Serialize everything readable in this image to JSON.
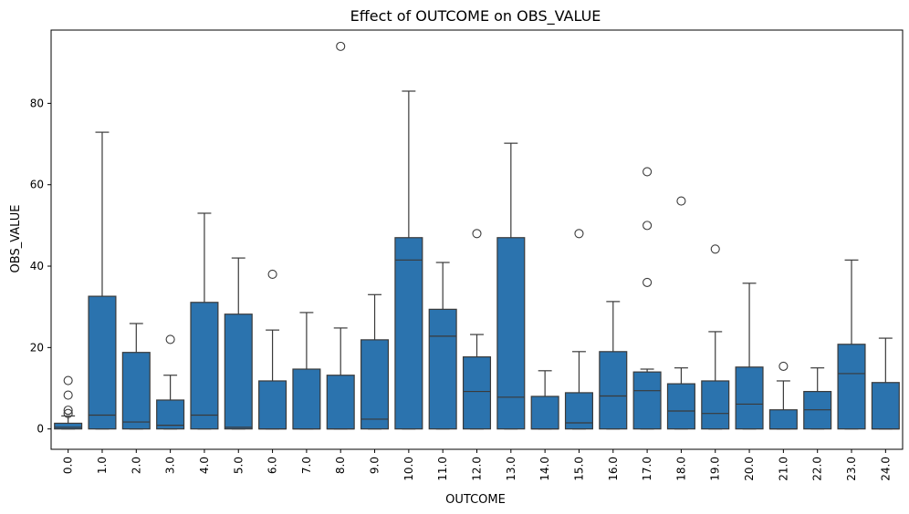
{
  "chart_data": {
    "type": "box",
    "title": "Effect of OUTCOME on OBS_VALUE",
    "xlabel": "OUTCOME",
    "ylabel": "OBS_VALUE",
    "ylim": [
      -5,
      98
    ],
    "yticks": [
      0,
      20,
      40,
      60,
      80
    ],
    "grid": false,
    "color": "#2b73ae",
    "edge_color": "#3a3a3a",
    "categories": [
      "0.0",
      "1.0",
      "2.0",
      "3.0",
      "4.0",
      "5.0",
      "6.0",
      "7.0",
      "8.0",
      "9.0",
      "10.0",
      "11.0",
      "12.0",
      "13.0",
      "14.0",
      "15.0",
      "16.0",
      "17.0",
      "18.0",
      "19.0",
      "20.0",
      "21.0",
      "22.0",
      "23.0",
      "24.0"
    ],
    "boxes": [
      {
        "whislo": 0,
        "q1": 0,
        "med": 0.4,
        "q3": 1.4,
        "whishi": 3.2,
        "fliers": [
          3.8,
          4.6,
          8.3,
          11.9
        ]
      },
      {
        "whislo": 0,
        "q1": 0,
        "med": 3.4,
        "q3": 32.6,
        "whishi": 72.9,
        "fliers": []
      },
      {
        "whislo": 0,
        "q1": 0,
        "med": 1.7,
        "q3": 18.8,
        "whishi": 25.9,
        "fliers": []
      },
      {
        "whislo": 0,
        "q1": 0,
        "med": 0.9,
        "q3": 7.1,
        "whishi": 13.2,
        "fliers": [
          22.0
        ]
      },
      {
        "whislo": 0,
        "q1": 0,
        "med": 3.4,
        "q3": 31.1,
        "whishi": 53.0,
        "fliers": []
      },
      {
        "whislo": 0,
        "q1": 0,
        "med": 0.4,
        "q3": 28.2,
        "whishi": 42.0,
        "fliers": []
      },
      {
        "whislo": 0,
        "q1": 0,
        "med": 0.0,
        "q3": 11.8,
        "whishi": 24.3,
        "fliers": [
          38.0
        ]
      },
      {
        "whislo": 0,
        "q1": 0,
        "med": 0.0,
        "q3": 14.7,
        "whishi": 28.6,
        "fliers": []
      },
      {
        "whislo": 0,
        "q1": 0,
        "med": 0.0,
        "q3": 13.2,
        "whishi": 24.8,
        "fliers": [
          94.0
        ]
      },
      {
        "whislo": 0,
        "q1": 0,
        "med": 2.4,
        "q3": 21.9,
        "whishi": 33.0,
        "fliers": []
      },
      {
        "whislo": 0,
        "q1": 0,
        "med": 41.5,
        "q3": 47.0,
        "whishi": 83.0,
        "fliers": []
      },
      {
        "whislo": 0,
        "q1": 0,
        "med": 22.8,
        "q3": 29.4,
        "whishi": 40.9,
        "fliers": []
      },
      {
        "whislo": 0,
        "q1": 0,
        "med": 9.2,
        "q3": 17.7,
        "whishi": 23.2,
        "fliers": [
          48.0
        ]
      },
      {
        "whislo": 0,
        "q1": 0,
        "med": 7.8,
        "q3": 47.0,
        "whishi": 70.2,
        "fliers": []
      },
      {
        "whislo": 0,
        "q1": 0,
        "med": 0.0,
        "q3": 8.0,
        "whishi": 14.3,
        "fliers": []
      },
      {
        "whislo": 0,
        "q1": 0,
        "med": 1.5,
        "q3": 8.9,
        "whishi": 19.0,
        "fliers": [
          48.0
        ]
      },
      {
        "whislo": 0,
        "q1": 0,
        "med": 8.1,
        "q3": 19.0,
        "whishi": 31.3,
        "fliers": []
      },
      {
        "whislo": 0,
        "q1": 0,
        "med": 9.4,
        "q3": 14.0,
        "whishi": 14.7,
        "fliers": [
          36.0,
          50.0,
          63.2
        ]
      },
      {
        "whislo": 0,
        "q1": 0,
        "med": 4.4,
        "q3": 11.1,
        "whishi": 15.0,
        "fliers": [
          56.0
        ]
      },
      {
        "whislo": 0,
        "q1": 0,
        "med": 3.8,
        "q3": 11.8,
        "whishi": 23.9,
        "fliers": [
          44.2
        ]
      },
      {
        "whislo": 0,
        "q1": 0,
        "med": 6.1,
        "q3": 15.2,
        "whishi": 35.8,
        "fliers": []
      },
      {
        "whislo": 0,
        "q1": 0,
        "med": 0.0,
        "q3": 4.7,
        "whishi": 11.8,
        "fliers": [
          15.4
        ]
      },
      {
        "whislo": 0,
        "q1": 0,
        "med": 4.7,
        "q3": 9.2,
        "whishi": 15.0,
        "fliers": []
      },
      {
        "whislo": 0,
        "q1": 0,
        "med": 13.6,
        "q3": 20.8,
        "whishi": 41.5,
        "fliers": []
      },
      {
        "whislo": 0,
        "q1": 0,
        "med": 0.0,
        "q3": 11.4,
        "whishi": 22.3,
        "fliers": []
      }
    ]
  }
}
